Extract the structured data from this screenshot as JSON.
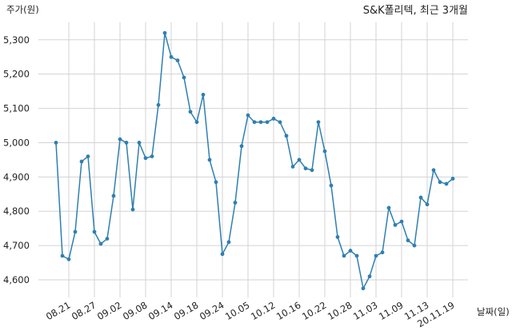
{
  "chart_data": {
    "type": "line",
    "title": "S&K폴리텍, 최근 3개월",
    "xlabel": "날짜(일)",
    "ylabel": "주가(원)",
    "ylim": [
      4550,
      5350
    ],
    "y_ticks": [
      4600,
      4700,
      4800,
      4900,
      5000,
      5100,
      5200,
      5300
    ],
    "y_tick_labels": [
      "4,600",
      "4,700",
      "4,800",
      "4,900",
      "5,000",
      "5,100",
      "5,200",
      "5,300"
    ],
    "x_tick_labels": [
      "08.21",
      "08.27",
      "09.02",
      "09.08",
      "09.14",
      "09.18",
      "09.24",
      "10.05",
      "10.12",
      "10.16",
      "10.22",
      "10.28",
      "11.03",
      "11.09",
      "11.13",
      "20.11.19"
    ],
    "x_tick_index": [
      2,
      6,
      10,
      14,
      18,
      22,
      26,
      30,
      34,
      38,
      42,
      46,
      50,
      54,
      58,
      62
    ],
    "grid": true,
    "line_color": "#2f7fb1",
    "series": [
      {
        "values": [
          5000,
          4670,
          4660,
          4740,
          4945,
          4960,
          4740,
          4705,
          4720,
          4845,
          5010,
          5000,
          4805,
          5000,
          4955,
          4960,
          5110,
          5320,
          5250,
          5240,
          5190,
          5090,
          5060,
          5140,
          4950,
          4885,
          4675,
          4710,
          4825,
          4990,
          5080,
          5060,
          5060,
          5060,
          5070,
          5060,
          5020,
          4930,
          4950,
          4925,
          4920,
          5060,
          4975,
          4875,
          4725,
          4670,
          4685,
          4670,
          4575,
          4610,
          4670,
          4680,
          4810,
          4760,
          4770,
          4715,
          4700,
          4840,
          4820,
          4920,
          4885,
          4880,
          4895
        ]
      }
    ]
  }
}
